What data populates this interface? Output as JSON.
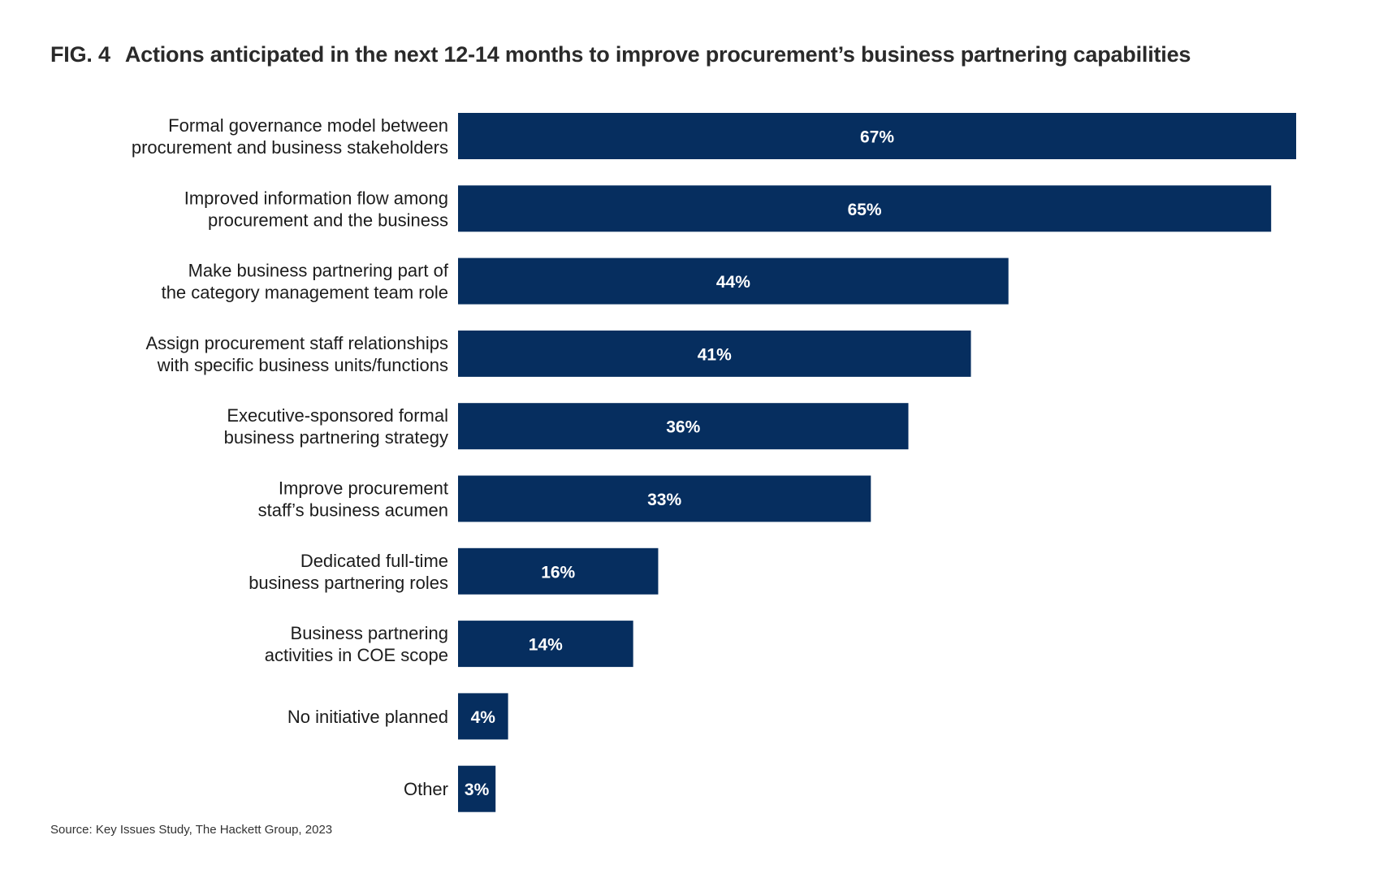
{
  "figure": {
    "number": "FIG. 4",
    "title": "Actions anticipated in the next 12-14 months to improve procurement’s business partnering capabilities",
    "source": "Source: Key Issues Study, The Hackett Group, 2023"
  },
  "colors": {
    "bar": "#062e5f",
    "value_text": "#ffffff",
    "label_text": "#1c1c1c"
  },
  "chart_data": {
    "type": "bar",
    "orientation": "horizontal",
    "title": "Actions anticipated in the next 12-14 months to improve procurement’s business partnering capabilities",
    "xlabel": "",
    "ylabel": "",
    "xlim": [
      0,
      67
    ],
    "grid": false,
    "unit": "%",
    "categories": [
      [
        "Formal governance model between",
        "procurement and business stakeholders"
      ],
      [
        "Improved information flow among",
        "procurement and the business"
      ],
      [
        "Make business partnering part of",
        "the category management team role"
      ],
      [
        "Assign procurement staff relationships",
        "with specific business units/functions"
      ],
      [
        "Executive-sponsored formal",
        "business partnering strategy"
      ],
      [
        "Improve procurement",
        "staff’s business acumen"
      ],
      [
        "Dedicated full-time",
        "business partnering roles"
      ],
      [
        "Business partnering",
        "activities in COE scope"
      ],
      [
        "No initiative planned"
      ],
      [
        "Other"
      ]
    ],
    "values": [
      67,
      65,
      44,
      41,
      36,
      33,
      16,
      14,
      4,
      3
    ],
    "value_labels": [
      "67%",
      "65%",
      "44%",
      "41%",
      "36%",
      "33%",
      "16%",
      "14%",
      "4%",
      "3%"
    ]
  }
}
